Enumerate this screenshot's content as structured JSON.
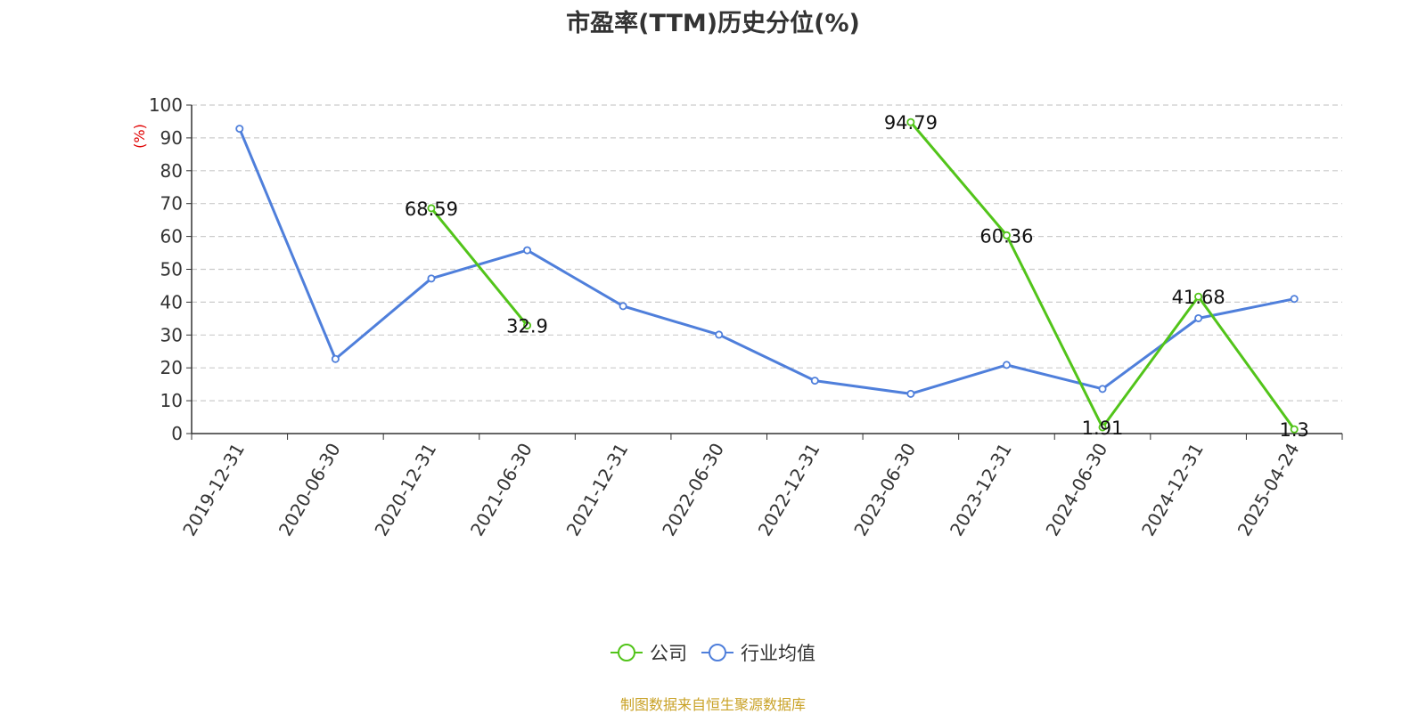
{
  "chart_data": {
    "type": "line",
    "title": "市盈率(TTM)历史分位(%)",
    "ylabel": "(%)",
    "ylim": [
      0,
      100
    ],
    "yticks": [
      0,
      10,
      20,
      30,
      40,
      50,
      60,
      70,
      80,
      90,
      100
    ],
    "grid": true,
    "legend_position": "bottom",
    "categories": [
      "2019-12-31",
      "2020-06-30",
      "2020-12-31",
      "2021-06-30",
      "2021-12-31",
      "2022-06-30",
      "2022-12-31",
      "2023-06-30",
      "2023-12-31",
      "2024-06-30",
      "2024-12-31",
      "2025-04-24"
    ],
    "series": [
      {
        "name": "公司",
        "color": "#52c41a",
        "show_labels": true,
        "values": [
          null,
          null,
          68.59,
          32.9,
          null,
          null,
          null,
          94.79,
          60.36,
          1.91,
          41.68,
          1.3
        ]
      },
      {
        "name": "行业均值",
        "color": "#4f7fdb",
        "show_labels": false,
        "values": [
          92.8,
          22.7,
          47.2,
          55.8,
          38.8,
          30.1,
          16.1,
          12.1,
          20.9,
          13.6,
          35.1,
          41.0
        ]
      }
    ],
    "source_note": "制图数据来自恒生聚源数据库"
  }
}
